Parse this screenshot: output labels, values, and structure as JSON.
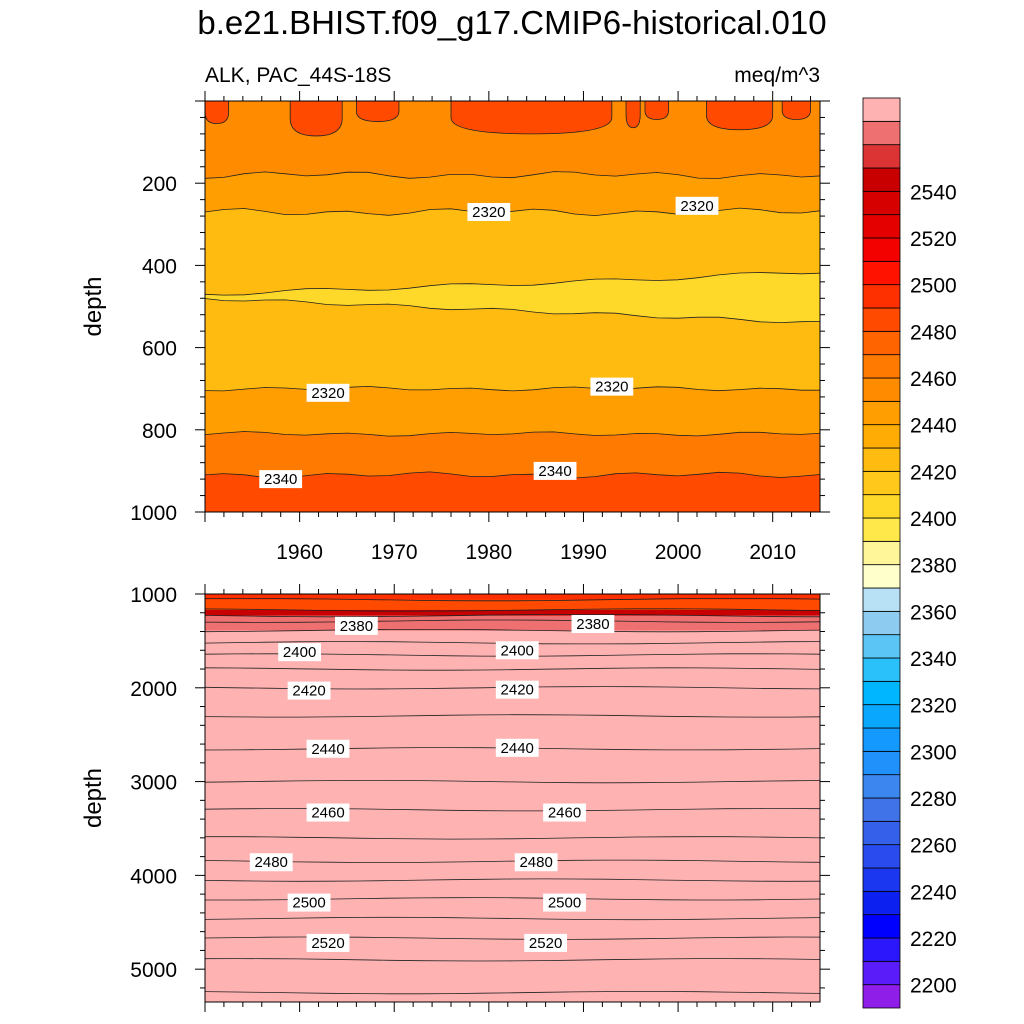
{
  "figure": {
    "title": "b.e21.BHIST.f09_g17.CMIP6-historical.010",
    "left_string": "ALK, PAC_44S-18S",
    "right_string": "meq/m^3"
  },
  "chart_data": [
    {
      "type": "contour",
      "panel": "upper",
      "variable": "ALK",
      "region": "PAC_44S-18S",
      "units": "meq/m^3",
      "ylabel": "depth",
      "xlabel": "",
      "xlim": [
        1950,
        2015
      ],
      "ylim": [
        0,
        1000
      ],
      "y_reversed": true,
      "xticks": [
        1960,
        1970,
        1980,
        1990,
        2000,
        2010
      ],
      "xtick_labels": [
        "1960",
        "1970",
        "1980",
        "1990",
        "2000",
        "2010"
      ],
      "yticks": [
        200,
        400,
        600,
        800,
        1000
      ],
      "ytick_labels": [
        "200",
        "400",
        "600",
        "800",
        "1000"
      ],
      "contour_interval": 5,
      "bands": [
        {
          "level": 2345,
          "from_depth": 0,
          "to_depth": 90,
          "note": "patches near surface"
        },
        {
          "level": 2330,
          "from_depth": 0,
          "to_depth": 180
        },
        {
          "level": 2325,
          "from_depth": 180,
          "to_depth": 270
        },
        {
          "level": 2315,
          "from_depth": 270,
          "to_depth": 700
        },
        {
          "level": 2305,
          "from_depth": 430,
          "to_depth": 520,
          "note": "low-alkalinity core"
        },
        {
          "level": 2325,
          "from_depth": 700,
          "to_depth": 810
        },
        {
          "level": 2335,
          "from_depth": 810,
          "to_depth": 910
        },
        {
          "level": 2345,
          "from_depth": 910,
          "to_depth": 1000
        }
      ],
      "contour_labels": [
        {
          "text": "2320",
          "year": 1980,
          "depth": 270
        },
        {
          "text": "2320",
          "year": 2002,
          "depth": 255
        },
        {
          "text": "2320",
          "year": 1963,
          "depth": 710
        },
        {
          "text": "2320",
          "year": 1993,
          "depth": 695
        },
        {
          "text": "2340",
          "year": 1958,
          "depth": 920
        },
        {
          "text": "2340",
          "year": 1987,
          "depth": 900
        }
      ]
    },
    {
      "type": "contour",
      "panel": "lower",
      "variable": "ALK",
      "region": "PAC_44S-18S",
      "units": "meq/m^3",
      "ylabel": "depth",
      "xlabel": "",
      "xlim": [
        1950,
        2015
      ],
      "ylim": [
        1000,
        5350
      ],
      "y_reversed": true,
      "yticks": [
        1000,
        2000,
        3000,
        4000,
        5000
      ],
      "ytick_labels": [
        "1000",
        "2000",
        "3000",
        "4000",
        "5000"
      ],
      "contour_interval": 5,
      "contour_labels": [
        {
          "text": "2380",
          "year": 1966,
          "depth": 1340
        },
        {
          "text": "2380",
          "year": 1991,
          "depth": 1320
        },
        {
          "text": "2400",
          "year": 1960,
          "depth": 1620
        },
        {
          "text": "2400",
          "year": 1983,
          "depth": 1600
        },
        {
          "text": "2420",
          "year": 1961,
          "depth": 2030
        },
        {
          "text": "2420",
          "year": 1983,
          "depth": 2020
        },
        {
          "text": "2440",
          "year": 1963,
          "depth": 2650
        },
        {
          "text": "2440",
          "year": 1983,
          "depth": 2640
        },
        {
          "text": "2460",
          "year": 1963,
          "depth": 3330
        },
        {
          "text": "2460",
          "year": 1988,
          "depth": 3330
        },
        {
          "text": "2480",
          "year": 1957,
          "depth": 3860
        },
        {
          "text": "2480",
          "year": 1985,
          "depth": 3860
        },
        {
          "text": "2500",
          "year": 1961,
          "depth": 4290
        },
        {
          "text": "2500",
          "year": 1988,
          "depth": 4290
        },
        {
          "text": "2520",
          "year": 1963,
          "depth": 4720
        },
        {
          "text": "2520",
          "year": 1986,
          "depth": 4720
        }
      ]
    }
  ],
  "colorbar": {
    "levels": [
      2200,
      2205,
      2210,
      2215,
      2220,
      2225,
      2230,
      2235,
      2240,
      2245,
      2250,
      2255,
      2260,
      2265,
      2270,
      2275,
      2280,
      2285,
      2290,
      2295,
      2300,
      2305,
      2310,
      2315,
      2320,
      2325,
      2330,
      2335,
      2340,
      2345,
      2350,
      2355,
      2360,
      2365,
      2370,
      2375,
      2380,
      2385,
      2390,
      2395,
      2400,
      2405,
      2410,
      2415,
      2420,
      2425,
      2430,
      2435,
      2440,
      2445,
      2450,
      2455,
      2460,
      2465,
      2470,
      2475,
      2480,
      2485,
      2490,
      2495,
      2500,
      2505,
      2510,
      2515,
      2520,
      2525,
      2530,
      2535,
      2540,
      2545,
      2550,
      2555,
      2560
    ],
    "label_values": [
      2200,
      2220,
      2240,
      2260,
      2280,
      2300,
      2320,
      2340,
      2360,
      2380,
      2400,
      2420,
      2440,
      2460,
      2480,
      2500,
      2520,
      2540
    ],
    "labels": [
      "2200",
      "2220",
      "2240",
      "2260",
      "2280",
      "2300",
      "2320",
      "2340",
      "2360",
      "2380",
      "2400",
      "2420",
      "2440",
      "2460",
      "2480",
      "2500",
      "2520",
      "2540"
    ],
    "colors": [
      "#8f1fe8",
      "#5a1dfa",
      "#2c16fb",
      "#0000ff",
      "#0c21ef",
      "#1c37f0",
      "#2a4cee",
      "#3561ea",
      "#4173e8",
      "#3b86ef",
      "#2090fb",
      "#1499ff",
      "#0aa7ff",
      "#00b6ff",
      "#2ac0fa",
      "#5bc6f5",
      "#8ecbf0",
      "#b8e1f5",
      "#ffffcc",
      "#fff69a",
      "#ffe84a",
      "#ffd92a",
      "#ffc81a",
      "#ffbb10",
      "#ffad05",
      "#ff9e00",
      "#ff8c00",
      "#ff7a00",
      "#ff6400",
      "#ff4a00",
      "#ff3000",
      "#ff1300",
      "#f30000",
      "#e50000",
      "#d60000",
      "#c80000",
      "#dc3434",
      "#ef7070",
      "#ffb2b2"
    ]
  }
}
